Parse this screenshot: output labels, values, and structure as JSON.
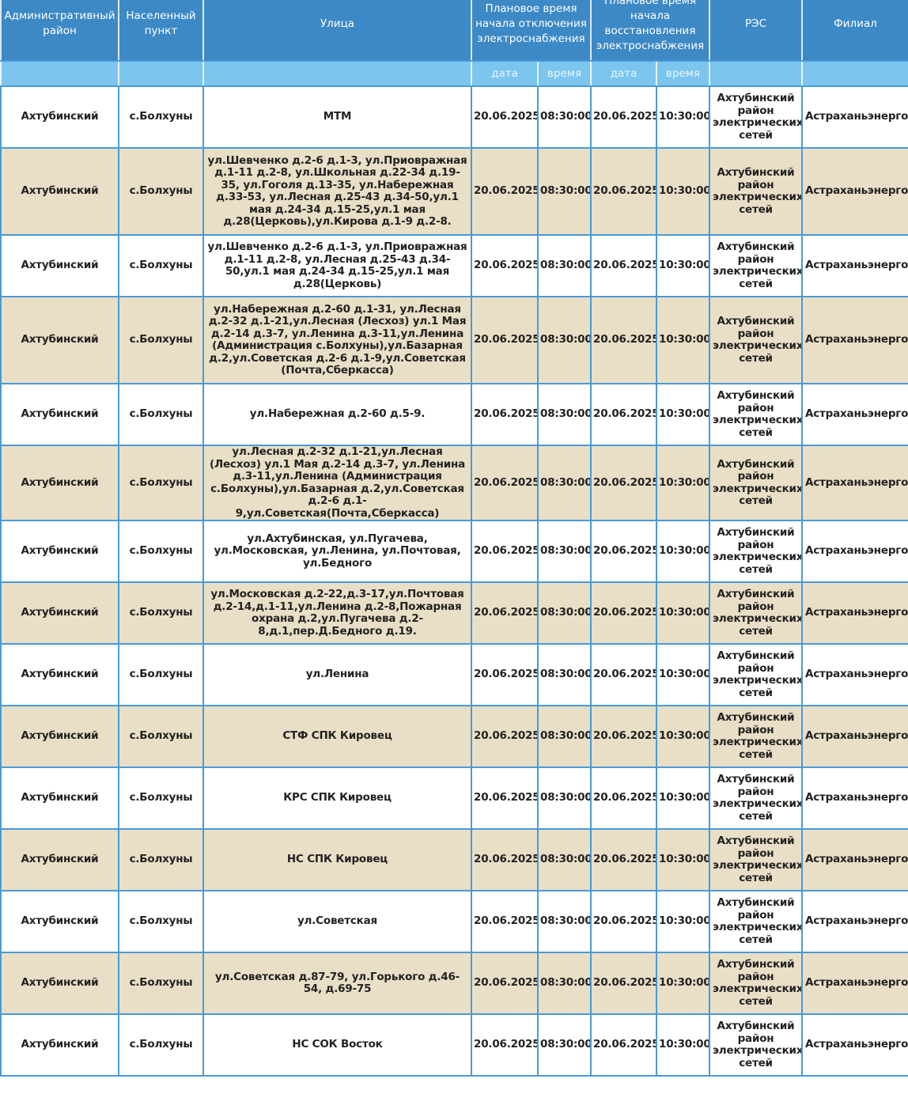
{
  "header": {
    "columns": [
      "Административный район",
      "Населенный пункт",
      "Улица",
      "Плановое время начала отключения электроснабжения",
      "Плановое время начала восстановления электроснабжения",
      "РЭС",
      "Филиал"
    ],
    "sub": {
      "date": "дата",
      "time": "время"
    }
  },
  "rows": [
    {
      "district": "Ахтубинский",
      "place": "с.Болхуны",
      "street": "МТМ",
      "off_date": "20.06.2025",
      "off_time": "08:30:00",
      "on_date": "20.06.2025",
      "on_time": "10:30:00",
      "res": "Ахтубинский район электрических сетей",
      "branch": "Астраханьэнерго"
    },
    {
      "district": "Ахтубинский",
      "place": "с.Болхуны",
      "street": "ул.Шевченко д.2-6 д.1-3, ул.Приовражная д.1-11 д.2-8, ул.Школьная д.22-34 д.19-35, ул.Гоголя д.13-35, ул.Набережная д.33-53, ул.Лесная д.25-43 д.34-50,ул.1 мая д.24-34 д.15-25,ул.1 мая д.28(Церковь),ул.Кирова д.1-9 д.2-8.",
      "off_date": "20.06.2025",
      "off_time": "08:30:00",
      "on_date": "20.06.2025",
      "on_time": "10:30:00",
      "res": "Ахтубинский район электрических сетей",
      "branch": "Астраханьэнерго"
    },
    {
      "district": "Ахтубинский",
      "place": "с.Болхуны",
      "street": "ул.Шевченко д.2-6 д.1-3, ул.Приовражная д.1-11 д.2-8, ул.Лесная д.25-43 д.34-50,ул.1 мая д.24-34 д.15-25,ул.1 мая д.28(Церковь)",
      "off_date": "20.06.2025",
      "off_time": "08:30:00",
      "on_date": "20.06.2025",
      "on_time": "10:30:00",
      "res": "Ахтубинский район электрических сетей",
      "branch": "Астраханьэнерго"
    },
    {
      "district": "Ахтубинский",
      "place": "с.Болхуны",
      "street": "ул.Набережная д.2-60 д.1-31, ул.Лесная д.2-32 д.1-21,ул.Лесная (Лесхоз) ул.1 Мая д.2-14 д.3-7, ул.Ленина д.3-11,ул.Ленина (Администрация с.Болхуны),ул.Базарная д.2,ул.Советская д.2-6 д.1-9,ул.Советская (Почта,Сберкасса)",
      "off_date": "20.06.2025",
      "off_time": "08:30:00",
      "on_date": "20.06.2025",
      "on_time": "10:30:00",
      "res": "Ахтубинский район электрических сетей",
      "branch": "Астраханьэнерго"
    },
    {
      "district": "Ахтубинский",
      "place": "с.Болхуны",
      "street": "ул.Набережная д.2-60 д.5-9.",
      "off_date": "20.06.2025",
      "off_time": "08:30:00",
      "on_date": "20.06.2025",
      "on_time": "10:30:00",
      "res": "Ахтубинский район электрических сетей",
      "branch": "Астраханьэнерго"
    },
    {
      "district": "Ахтубинский",
      "place": "с.Болхуны",
      "street": "ул.Лесная д.2-32 д.1-21,ул.Лесная (Лесхоз) ул.1 Мая д.2-14 д.3-7, ул.Ленина д.3-11,ул.Ленина (Администрация с.Болхуны),ул.Базарная д.2,ул.Советская д.2-6 д.1-9,ул.Советская(Почта,Сберкасса)",
      "off_date": "20.06.2025",
      "off_time": "08:30:00",
      "on_date": "20.06.2025",
      "on_time": "10:30:00",
      "res": "Ахтубинский район электрических сетей",
      "branch": "Астраханьэнерго"
    },
    {
      "district": "Ахтубинский",
      "place": "с.Болхуны",
      "street": "ул.Ахтубинская, ул.Пугачева, ул.Московская, ул.Ленина, ул.Почтовая, ул.Бедного",
      "off_date": "20.06.2025",
      "off_time": "08:30:00",
      "on_date": "20.06.2025",
      "on_time": "10:30:00",
      "res": "Ахтубинский район электрических сетей",
      "branch": "Астраханьэнерго"
    },
    {
      "district": "Ахтубинский",
      "place": "с.Болхуны",
      "street": "ул.Московская д.2-22,д.3-17,ул.Почтовая д.2-14,д.1-11,ул.Ленина д.2-8,Пожарная охрана д.2,ул.Пугачева д.2-8,д.1,пер.Д.Бедного д.19.",
      "off_date": "20.06.2025",
      "off_time": "08:30:00",
      "on_date": "20.06.2025",
      "on_time": "10:30:00",
      "res": "Ахтубинский район электрических сетей",
      "branch": "Астраханьэнерго"
    },
    {
      "district": "Ахтубинский",
      "place": "с.Болхуны",
      "street": "ул.Ленина",
      "off_date": "20.06.2025",
      "off_time": "08:30:00",
      "on_date": "20.06.2025",
      "on_time": "10:30:00",
      "res": "Ахтубинский район электрических сетей",
      "branch": "Астраханьэнерго"
    },
    {
      "district": "Ахтубинский",
      "place": "с.Болхуны",
      "street": "СТФ СПК Кировец",
      "off_date": "20.06.2025",
      "off_time": "08:30:00",
      "on_date": "20.06.2025",
      "on_time": "10:30:00",
      "res": "Ахтубинский район электрических сетей",
      "branch": "Астраханьэнерго"
    },
    {
      "district": "Ахтубинский",
      "place": "с.Болхуны",
      "street": "КРС СПК Кировец",
      "off_date": "20.06.2025",
      "off_time": "08:30:00",
      "on_date": "20.06.2025",
      "on_time": "10:30:00",
      "res": "Ахтубинский район электрических сетей",
      "branch": "Астраханьэнерго"
    },
    {
      "district": "Ахтубинский",
      "place": "с.Болхуны",
      "street": "НС СПК Кировец",
      "off_date": "20.06.2025",
      "off_time": "08:30:00",
      "on_date": "20.06.2025",
      "on_time": "10:30:00",
      "res": "Ахтубинский район электрических сетей",
      "branch": "Астраханьэнерго"
    },
    {
      "district": "Ахтубинский",
      "place": "с.Болхуны",
      "street": "ул.Советская",
      "off_date": "20.06.2025",
      "off_time": "08:30:00",
      "on_date": "20.06.2025",
      "on_time": "10:30:00",
      "res": "Ахтубинский район электрических сетей",
      "branch": "Астраханьэнерго"
    },
    {
      "district": "Ахтубинский",
      "place": "с.Болхуны",
      "street": "ул.Советская д.87-79, ул.Горького д.46-54, д.69-75",
      "off_date": "20.06.2025",
      "off_time": "08:30:00",
      "on_date": "20.06.2025",
      "on_time": "10:30:00",
      "res": "Ахтубинский район электрических сетей",
      "branch": "Астраханьэнерго"
    },
    {
      "district": "Ахтубинский",
      "place": "с.Болхуны",
      "street": "НС СОК Восток",
      "off_date": "20.06.2025",
      "off_time": "08:30:00",
      "on_date": "20.06.2025",
      "on_time": "10:30:00",
      "res": "Ахтубинский район электрических сетей",
      "branch": "Астраханьэнерго"
    }
  ],
  "colors": {
    "header": "#3d89c5",
    "subheader": "#7bc5ef",
    "row_alt": "#e9dfc6",
    "border": "#4a9ad6"
  }
}
